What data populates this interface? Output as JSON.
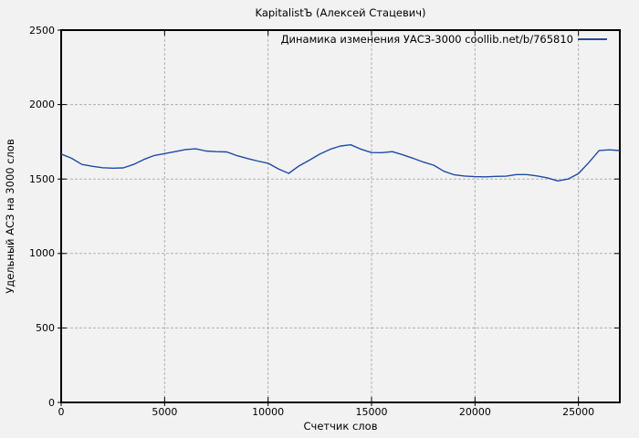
{
  "page": {
    "title": "KapitalistЪ (Алексей Стацевич)"
  },
  "legend": {
    "label": "Динамика изменения УАСЗ-3000 coollib.net/b/765810"
  },
  "axes": {
    "xlabel": "Счетчик слов",
    "ylabel": "Удельный АСЗ на 3000 слов"
  },
  "colors": {
    "series": "#1c4ba5",
    "background": "#f2f2f2",
    "grid": "#b0b0b0",
    "border": "#000000",
    "text": "#000000"
  },
  "chart_data": {
    "type": "line",
    "title": "KapitalistЪ (Алексей Стацевич)",
    "xlabel": "Счетчик слов",
    "ylabel": "Удельный АСЗ на 3000 слов",
    "xlim": [
      0,
      27000
    ],
    "ylim": [
      0,
      2500
    ],
    "xticks": [
      0,
      5000,
      10000,
      15000,
      20000,
      25000
    ],
    "yticks": [
      0,
      500,
      1000,
      1500,
      2000,
      2500
    ],
    "grid": true,
    "legend_position": "top-right",
    "series": [
      {
        "name": "Динамика изменения УАСЗ-3000 coollib.net/b/765810",
        "color": "#1c4ba5",
        "x": [
          0,
          500,
          1000,
          1500,
          2000,
          2500,
          3000,
          3500,
          4000,
          4500,
          5000,
          5500,
          6000,
          6500,
          7000,
          7500,
          8000,
          8500,
          9000,
          9500,
          10000,
          10500,
          11000,
          11500,
          12000,
          12500,
          13000,
          13500,
          14000,
          14500,
          15000,
          15500,
          16000,
          16500,
          17000,
          17500,
          18000,
          18500,
          19000,
          19500,
          20000,
          20500,
          21000,
          21500,
          22000,
          22500,
          23000,
          23500,
          24000,
          24500,
          25000,
          25500,
          26000,
          26500,
          27000
        ],
        "values": [
          1668,
          1640,
          1598,
          1586,
          1576,
          1573,
          1575,
          1598,
          1632,
          1658,
          1671,
          1684,
          1698,
          1703,
          1688,
          1684,
          1682,
          1657,
          1638,
          1621,
          1606,
          1568,
          1538,
          1589,
          1627,
          1667,
          1700,
          1722,
          1730,
          1700,
          1678,
          1677,
          1684,
          1663,
          1640,
          1614,
          1593,
          1552,
          1528,
          1520,
          1516,
          1515,
          1518,
          1519,
          1530,
          1530,
          1521,
          1508,
          1487,
          1500,
          1537,
          1610,
          1692,
          1696,
          1691
        ]
      }
    ]
  }
}
